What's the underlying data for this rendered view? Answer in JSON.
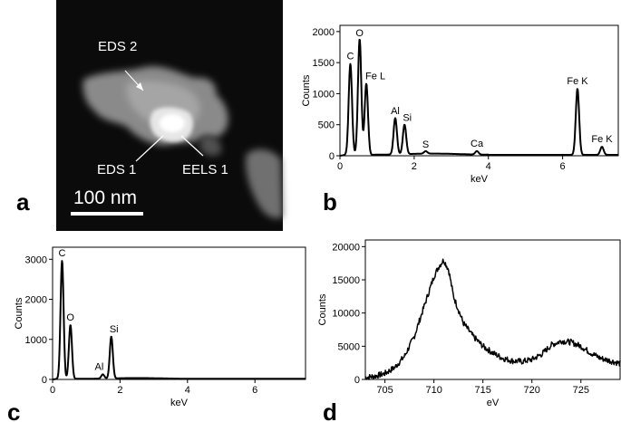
{
  "panel_letters": {
    "a": "a",
    "b": "b",
    "c": "c",
    "d": "d"
  },
  "micrograph": {
    "labels": {
      "eds2": "EDS 2",
      "eds1": "EDS 1",
      "eels1": "EELS 1"
    },
    "scale_bar": "100 nm"
  },
  "chart_data": [
    {
      "id": "b",
      "type": "line",
      "xlabel": "keV",
      "ylabel": "Counts",
      "xlim": [
        0,
        7.5
      ],
      "ylim": [
        0,
        2100
      ],
      "xticks": [
        0,
        2,
        4,
        6
      ],
      "yticks": [
        0,
        500,
        1000,
        1500,
        2000
      ],
      "peaks": [
        {
          "label": "C",
          "x": 0.28,
          "y": 1480
        },
        {
          "label": "O",
          "x": 0.53,
          "y": 1880
        },
        {
          "label": "Fe L",
          "x": 0.71,
          "y": 1160
        },
        {
          "label": "Al",
          "x": 1.49,
          "y": 600
        },
        {
          "label": "Si",
          "x": 1.74,
          "y": 490
        },
        {
          "label": "S",
          "x": 2.31,
          "y": 55
        },
        {
          "label": "Ca",
          "x": 3.69,
          "y": 70
        },
        {
          "label": "Fe K",
          "x": 6.4,
          "y": 1080
        },
        {
          "label": "Fe K",
          "x": 7.06,
          "y": 145
        }
      ]
    },
    {
      "id": "c",
      "type": "line",
      "xlabel": "keV",
      "ylabel": "Counts",
      "xlim": [
        0,
        7.5
      ],
      "ylim": [
        0,
        3300
      ],
      "xticks": [
        0,
        2,
        4,
        6
      ],
      "yticks": [
        0,
        1000,
        2000,
        3000
      ],
      "peaks": [
        {
          "label": "C",
          "x": 0.28,
          "y": 2960
        },
        {
          "label": "O",
          "x": 0.53,
          "y": 1360
        },
        {
          "label": "Al",
          "x": 1.49,
          "y": 120
        },
        {
          "label": "Si",
          "x": 1.74,
          "y": 1060
        }
      ]
    },
    {
      "id": "d",
      "type": "line",
      "xlabel": "eV",
      "ylabel": "Counts",
      "xlim": [
        703,
        729
      ],
      "ylim": [
        0,
        21000
      ],
      "xticks": [
        705,
        710,
        715,
        720,
        725
      ],
      "yticks": [
        0,
        5000,
        10000,
        15000,
        20000
      ],
      "x": [
        703,
        704,
        705,
        706,
        707,
        708,
        709,
        710,
        710.5,
        711,
        711.5,
        712,
        713,
        714,
        715,
        716,
        717,
        718,
        719,
        720,
        721,
        722,
        723,
        724,
        725,
        726,
        727,
        728,
        729
      ],
      "y": [
        300,
        500,
        900,
        1800,
        3500,
        6500,
        11000,
        15500,
        17000,
        18000,
        16500,
        12500,
        8500,
        6500,
        5000,
        4000,
        3200,
        2800,
        2700,
        3000,
        3800,
        5200,
        5800,
        5600,
        5000,
        4000,
        3200,
        2800,
        2400
      ]
    }
  ]
}
